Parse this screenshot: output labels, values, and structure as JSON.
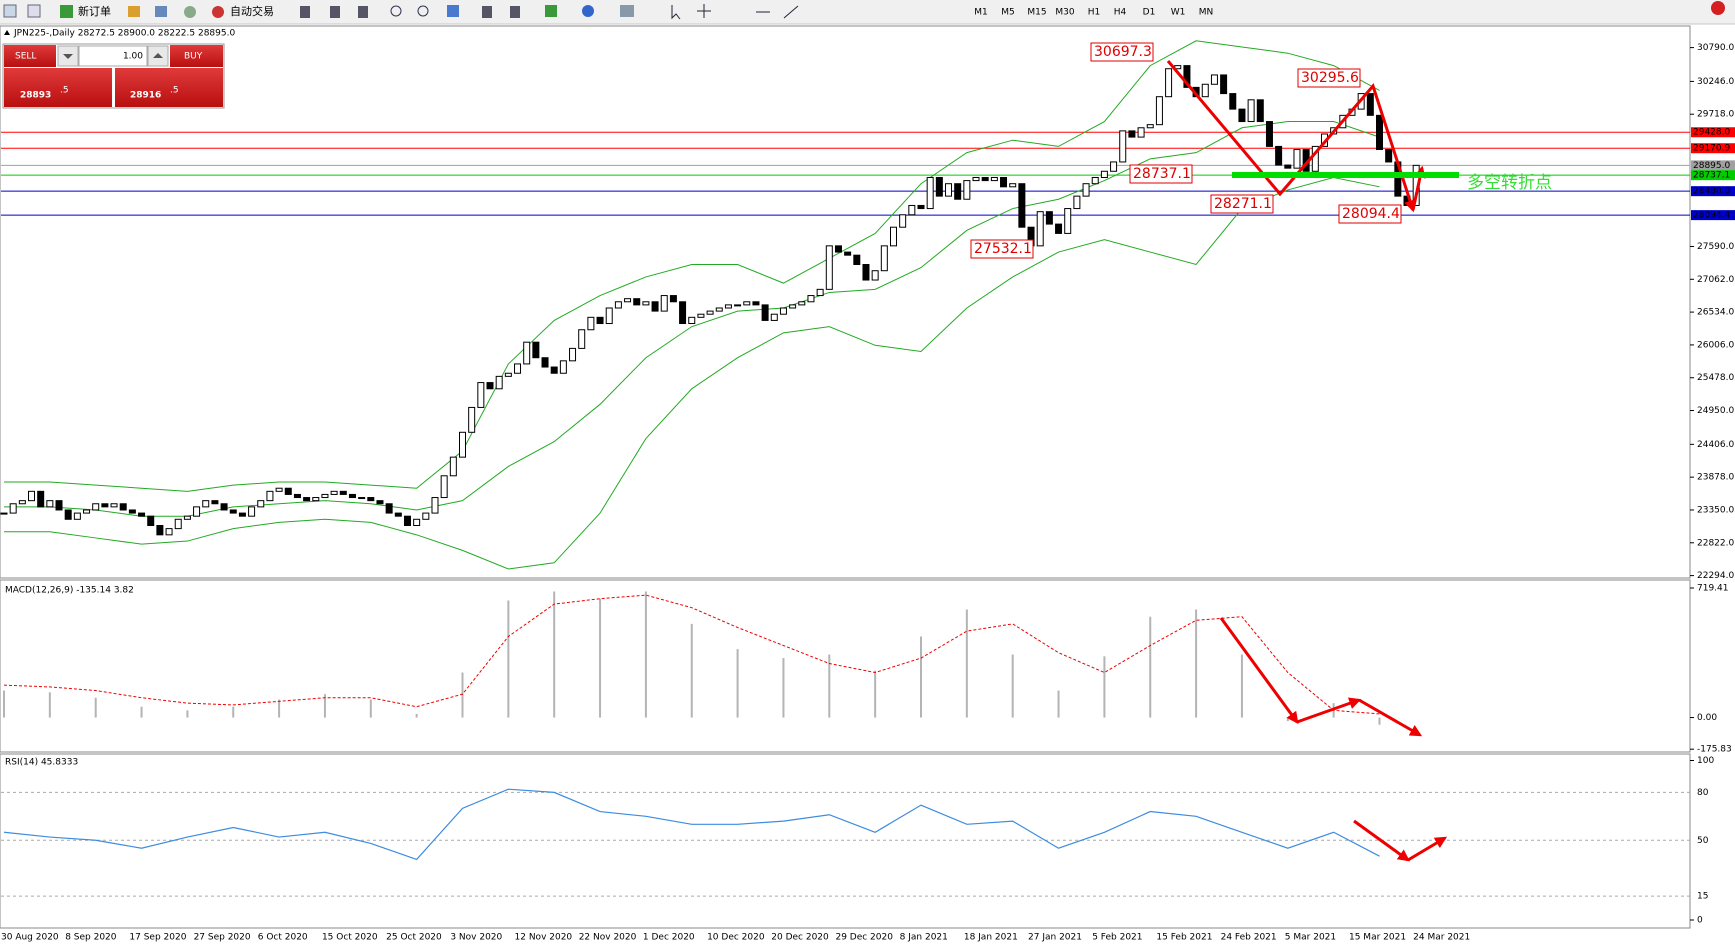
{
  "toolbar": {
    "new_order": "新订单",
    "auto_trading": "自动交易",
    "timeframes": [
      "M1",
      "M5",
      "M15",
      "M30",
      "H1",
      "H4",
      "D1",
      "W1",
      "MN"
    ]
  },
  "trade_panel": {
    "sell": "SELL",
    "lot": "1.00",
    "buy": "BUY",
    "sell_price": "28893",
    "sell_pip": ".5",
    "buy_price": "28916",
    "buy_pip": ".5"
  },
  "chart_data": {
    "type": "candlestick",
    "title": "JPN225-,Daily 28272.5 28900.0 28222.5 28895.0",
    "closes": [
      23300,
      23450,
      23500,
      23650,
      23400,
      23500,
      23350,
      23200,
      23300,
      23350,
      23450,
      23400,
      23450,
      23350,
      23300,
      23250,
      23100,
      22950,
      23050,
      23200,
      23250,
      23400,
      23500,
      23450,
      23350,
      23300,
      23250,
      23400,
      23500,
      23650,
      23700,
      23600,
      23550,
      23500,
      23550,
      23600,
      23650,
      23600,
      23550,
      23550,
      23500,
      23450,
      23300,
      23250,
      23100,
      23200,
      23300,
      23550,
      23900,
      24200,
      24600,
      25000,
      25400,
      25300,
      25500,
      25550,
      25700,
      26050,
      25800,
      25650,
      25550,
      25750,
      25950,
      26250,
      26450,
      26350,
      26600,
      26700,
      26750,
      26650,
      26700,
      26550,
      26800,
      26700,
      26350,
      26450,
      26500,
      26550,
      26600,
      26650,
      26650,
      26700,
      26650,
      26400,
      26500,
      26600,
      26650,
      26700,
      26800,
      26900,
      27600,
      27500,
      27450,
      27300,
      27050,
      27200,
      27600,
      27900,
      28100,
      28250,
      28200,
      28700,
      28400,
      28600,
      28350,
      28650,
      28700,
      28650,
      28700,
      28550,
      28600,
      27900,
      27600,
      28150,
      27950,
      27800,
      28200,
      28400,
      28600,
      28700,
      28800,
      28950,
      29450,
      29350,
      29500,
      29550,
      30000,
      30450,
      30500,
      30150,
      30000,
      30200,
      30350,
      30050,
      29800,
      29600,
      29950,
      29600,
      29200,
      28900,
      28850,
      29150,
      28800,
      29200,
      29400,
      29500,
      29700,
      29800,
      30050,
      29700,
      29150,
      28950,
      28400,
      28250,
      28895
    ],
    "bands": {
      "x": [
        0,
        5,
        10,
        15,
        20,
        25,
        30,
        35,
        40,
        45,
        50,
        55,
        60,
        65,
        70,
        75,
        80,
        85,
        90,
        95,
        100,
        105,
        110,
        115,
        120,
        125,
        130,
        135,
        140,
        145,
        150
      ],
      "upper": [
        23800,
        23800,
        23750,
        23700,
        23650,
        23750,
        23800,
        23800,
        23750,
        23700,
        24300,
        25700,
        26400,
        26800,
        27100,
        27300,
        27300,
        27000,
        27400,
        27800,
        28600,
        29100,
        29300,
        29200,
        29600,
        30500,
        30900,
        30800,
        30700,
        30500,
        30100
      ],
      "middle": [
        23400,
        23400,
        23350,
        23250,
        23250,
        23400,
        23450,
        23500,
        23450,
        23350,
        23500,
        24050,
        24450,
        25050,
        25800,
        26300,
        26550,
        26600,
        26850,
        26900,
        27250,
        27850,
        28200,
        28350,
        28650,
        29000,
        29100,
        29500,
        29600,
        29600,
        29350
      ],
      "lower": [
        23000,
        23000,
        22900,
        22800,
        22850,
        23050,
        23150,
        23200,
        23150,
        22950,
        22700,
        22400,
        22500,
        23300,
        24500,
        25300,
        25800,
        26200,
        26300,
        26000,
        25900,
        26600,
        27100,
        27500,
        27700,
        27500,
        27300,
        28200,
        28500,
        28700,
        28550
      ]
    },
    "ylim": [
      22294,
      30790
    ],
    "yticks": [
      {
        "value": 22294,
        "label": "22294.0"
      },
      {
        "value": 22822,
        "label": "22822.0"
      },
      {
        "value": 23350,
        "label": "23350.0"
      },
      {
        "value": 23878,
        "label": "23878.0"
      },
      {
        "value": 24406,
        "label": "24406.0"
      },
      {
        "value": 24950,
        "label": "24950.0"
      },
      {
        "value": 25478,
        "label": "25478.0"
      },
      {
        "value": 26006,
        "label": "26006.0"
      },
      {
        "value": 26534,
        "label": "26534.0"
      },
      {
        "value": 27062,
        "label": "27062.0"
      },
      {
        "value": 27590,
        "label": "27590.0"
      },
      {
        "value": 29718,
        "label": "29718.0"
      },
      {
        "value": 30246,
        "label": "30246.0"
      },
      {
        "value": 30790,
        "label": "30790.0"
      }
    ],
    "levels": [
      {
        "value": 29428,
        "label": "29428.0",
        "color": "#ff0000"
      },
      {
        "value": 29170.9,
        "label": "29170.9",
        "color": "#ff0000"
      },
      {
        "value": 28895,
        "label": "28895.0",
        "color": "#a0a0a0"
      },
      {
        "value": 28737.1,
        "label": "28737.1",
        "color": "#00cc00"
      },
      {
        "value": 28480,
        "label": "28480.0",
        "color": "#0000cc"
      },
      {
        "value": 28094.4,
        "label": "28094.4",
        "color": "#0000cc"
      }
    ],
    "annotations": [
      "30697.3",
      "30295.6",
      "28737.1",
      "28271.1",
      "28094.4",
      "27532.1"
    ],
    "note": "多空转折点",
    "date_labels": [
      "30 Aug 2020",
      "8 Sep 2020",
      "17 Sep 2020",
      "27 Sep 2020",
      "6 Oct 2020",
      "15 Oct 2020",
      "25 Oct 2020",
      "3 Nov 2020",
      "12 Nov 2020",
      "22 Nov 2020",
      "1 Dec 2020",
      "10 Dec 2020",
      "20 Dec 2020",
      "29 Dec 2020",
      "8 Jan 2021",
      "18 Jan 2021",
      "27 Jan 2021",
      "5 Feb 2021",
      "15 Feb 2021",
      "24 Feb 2021",
      "5 Mar 2021",
      "15 Mar 2021",
      "24 Mar 2021"
    ]
  },
  "macd": {
    "title": "MACD(12,26,9) -135.14 3.82",
    "histogram": [
      150,
      140,
      110,
      60,
      40,
      60,
      100,
      130,
      100,
      20,
      250,
      650,
      700,
      660,
      700,
      520,
      380,
      330,
      350,
      260,
      450,
      600,
      350,
      150,
      340,
      560,
      600,
      350,
      -20,
      80,
      -40
    ],
    "signal": [
      180,
      170,
      150,
      110,
      80,
      70,
      90,
      110,
      110,
      60,
      130,
      450,
      630,
      660,
      680,
      610,
      500,
      400,
      300,
      250,
      330,
      480,
      520,
      360,
      250,
      400,
      540,
      560,
      250,
      40,
      20
    ],
    "ylim": [
      -175.83,
      719.41
    ],
    "yticks": [
      {
        "value": -175.83,
        "label": "-175.83"
      },
      {
        "value": 0,
        "label": "0.00"
      },
      {
        "value": 719.41,
        "label": "719.41"
      }
    ]
  },
  "rsi": {
    "title": "RSI(14) 45.8333",
    "values": [
      55,
      52,
      50,
      45,
      52,
      58,
      52,
      55,
      48,
      38,
      70,
      82,
      80,
      68,
      65,
      60,
      60,
      62,
      66,
      55,
      72,
      60,
      62,
      45,
      55,
      68,
      65,
      55,
      45,
      55,
      40
    ],
    "ylim": [
      0,
      100
    ],
    "yticks": [
      0,
      15,
      50,
      80,
      100
    ]
  }
}
